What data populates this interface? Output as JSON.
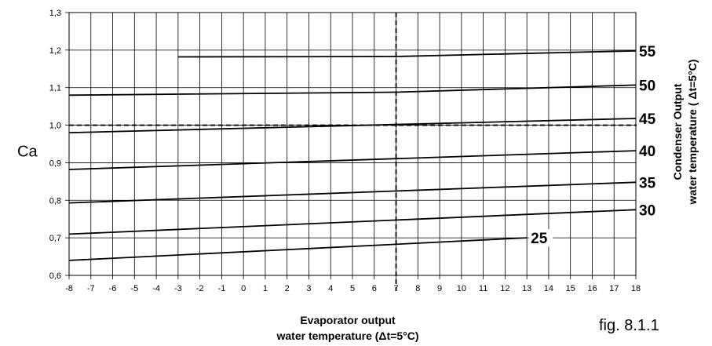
{
  "chart_data": {
    "type": "line",
    "ylabel": "Ca",
    "xlabel_line1": "Evaporator output",
    "xlabel_line2": "water temperature (Δt=5°C)",
    "right_label_line1": "Condenser Output",
    "right_label_line2": "water temperature ( Δt=5°C)",
    "figure_caption": "fig. 8.1.1",
    "xlim": [
      -8,
      18
    ],
    "ylim": [
      0.6,
      1.3
    ],
    "x_ticks": [
      -8,
      -7,
      -6,
      -5,
      -4,
      -3,
      -2,
      -1,
      0,
      1,
      2,
      3,
      4,
      5,
      6,
      7,
      8,
      9,
      10,
      11,
      12,
      13,
      14,
      15,
      16,
      17,
      18
    ],
    "x_tick_labels": [
      "-8",
      "-7",
      "-6",
      "-5",
      "-4",
      "-3",
      "-2",
      "-1",
      "0",
      "1",
      "2",
      "3",
      "4",
      "5",
      "6",
      "7",
      "8",
      "9",
      "10",
      "11",
      "12",
      "13",
      "14",
      "15",
      "16",
      "17",
      "18"
    ],
    "y_ticks": [
      0.6,
      0.7,
      0.8,
      0.9,
      1.0,
      1.1,
      1.2,
      1.3
    ],
    "y_tick_labels": [
      "0,6",
      "0,7",
      "0,8",
      "0,9",
      "1,0",
      "1,1",
      "1,2",
      "1,3"
    ],
    "grid": true,
    "reference_lines": {
      "x": 7,
      "y": 1.0,
      "style": "dashed"
    },
    "series": [
      {
        "name": "25",
        "x": [
          -8,
          13
        ],
        "y": [
          0.64,
          0.7
        ]
      },
      {
        "name": "30",
        "x": [
          -8,
          18
        ],
        "y": [
          0.71,
          0.775
        ]
      },
      {
        "name": "35",
        "x": [
          -8,
          18
        ],
        "y": [
          0.793,
          0.848
        ]
      },
      {
        "name": "40",
        "x": [
          -8,
          18
        ],
        "y": [
          0.882,
          0.932
        ]
      },
      {
        "name": "45",
        "x": [
          -8,
          18
        ],
        "y": [
          0.98,
          1.018
        ]
      },
      {
        "name": "50",
        "x": [
          -8,
          7,
          18
        ],
        "y": [
          1.08,
          1.088,
          1.107
        ]
      },
      {
        "name": "55",
        "x": [
          -3,
          7,
          18
        ],
        "y": [
          1.182,
          1.183,
          1.198
        ]
      }
    ]
  }
}
